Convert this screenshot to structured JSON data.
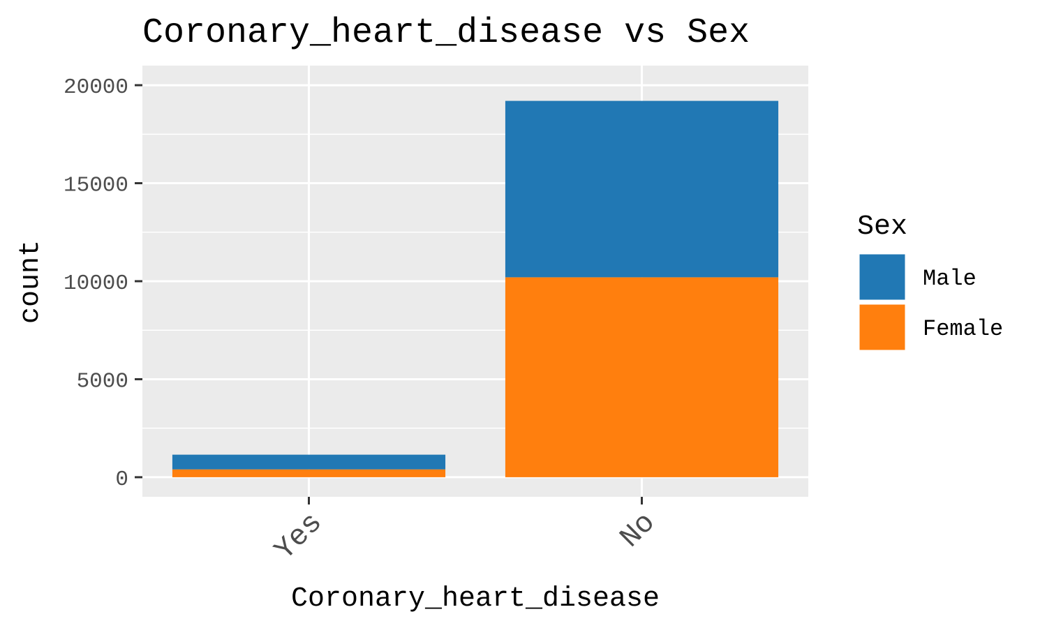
{
  "chart_data": {
    "type": "bar",
    "stacked": true,
    "title": "Coronary_heart_disease vs Sex",
    "xlabel": "Coronary_heart_disease",
    "ylabel": "count",
    "categories": [
      "Yes",
      "No"
    ],
    "series": [
      {
        "name": "Male",
        "color": "#2178b4",
        "values": [
          750,
          9000
        ]
      },
      {
        "name": "Female",
        "color": "#ff7f0e",
        "values": [
          400,
          10200
        ]
      }
    ],
    "ylim": [
      -1000,
      21000
    ],
    "yticks": [
      0,
      5000,
      10000,
      15000,
      20000
    ],
    "ytick_labels": [
      "0",
      "5000",
      "10000",
      "15000",
      "20000"
    ],
    "grid": true,
    "background": "#ebebeb",
    "legend": {
      "title": "Sex",
      "position": "right",
      "entries": [
        "Male",
        "Female"
      ]
    }
  }
}
